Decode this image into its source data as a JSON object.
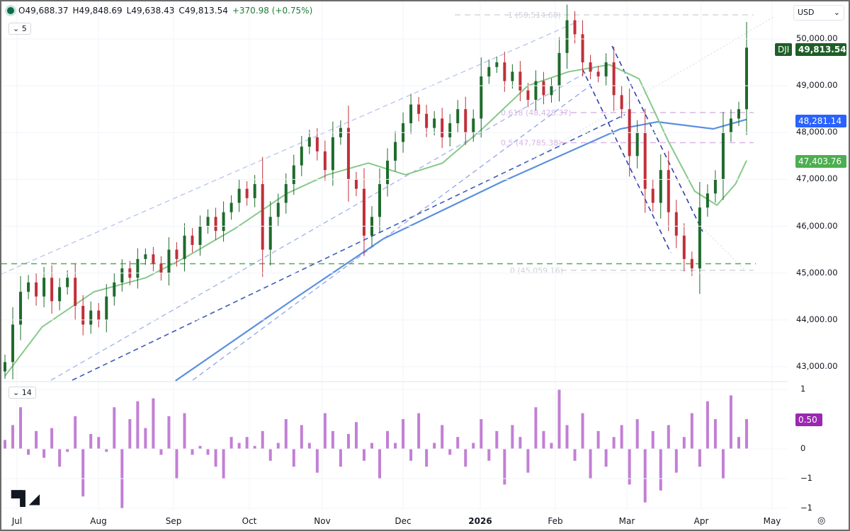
{
  "legend": {
    "open": "O49,688.37",
    "high": "H49,848.69",
    "low": "L49,638.43",
    "close": "C49,813.54",
    "change": "+370.98 (+0.75%)"
  },
  "main_pane": {
    "indicator_toggle": "5"
  },
  "osc_pane": {
    "indicator_toggle": "14"
  },
  "currency": "USD",
  "badges": {
    "symbol": "DJI",
    "last": "49,813.54",
    "ma_blue": "48,281.14",
    "ma_green": "47,403.76",
    "osc": "0.50"
  },
  "colors": {
    "up": "#1f6b2d",
    "down": "#c0303a",
    "ma_blue": "#5b8fe0",
    "ma_green": "#86c98a",
    "osc": "#c27fd6",
    "fib": "#d9b6e6",
    "support": "#4caf50"
  },
  "chart_data": [
    {
      "type": "candlestick",
      "x_range": [
        "2025-07-01",
        "2026-04-20"
      ],
      "ylim": [
        42700,
        50700
      ],
      "yticks": [
        "50,000.00",
        "49,000.00",
        "48,000.00",
        "47,000.00",
        "46,000.00",
        "45,000.00",
        "44,000.00",
        "43,000.00"
      ],
      "ytick_values": [
        50000,
        49000,
        48000,
        47000,
        46000,
        45000,
        44000,
        43000
      ],
      "closes": [
        43100,
        43900,
        44600,
        44800,
        44500,
        44900,
        44400,
        44700,
        44900,
        44300,
        43900,
        44200,
        44000,
        44500,
        44800,
        45100,
        44900,
        45300,
        45400,
        45200,
        45000,
        45500,
        45300,
        45800,
        45600,
        46000,
        46200,
        45900,
        46300,
        46500,
        46800,
        46600,
        46900,
        45500,
        46200,
        46500,
        46900,
        47300,
        47700,
        47900,
        47600,
        47200,
        47900,
        48100,
        47000,
        46800,
        45800,
        46200,
        46900,
        47400,
        47800,
        48200,
        48600,
        48400,
        48100,
        48300,
        47900,
        48200,
        48500,
        48000,
        48300,
        49200,
        49400,
        49500,
        49100,
        49300,
        48900,
        48700,
        49100,
        48800,
        49000,
        49700,
        50400,
        50100,
        49500,
        49300,
        49200,
        49500,
        48800,
        48500,
        47500,
        48000,
        46800,
        46500,
        47200,
        46300,
        45800,
        45300,
        45100,
        46400,
        46700,
        47000,
        48000,
        48300,
        48500,
        49813.54
      ],
      "ma_blue": [
        [
          0.23,
          42700
        ],
        [
          0.39,
          44450
        ],
        [
          0.51,
          45730
        ],
        [
          0.67,
          46950
        ],
        [
          0.83,
          48080
        ],
        [
          0.88,
          48230
        ],
        [
          0.955,
          48080
        ],
        [
          1,
          48281.14
        ]
      ],
      "ma_green": [
        [
          0,
          42800
        ],
        [
          0.05,
          43850
        ],
        [
          0.12,
          44600
        ],
        [
          0.19,
          44900
        ],
        [
          0.245,
          45350
        ],
        [
          0.31,
          45950
        ],
        [
          0.38,
          46700
        ],
        [
          0.435,
          47100
        ],
        [
          0.49,
          47350
        ],
        [
          0.54,
          47100
        ],
        [
          0.59,
          47350
        ],
        [
          0.645,
          48100
        ],
        [
          0.705,
          49000
        ],
        [
          0.76,
          49300
        ],
        [
          0.815,
          49450
        ],
        [
          0.855,
          49150
        ],
        [
          0.895,
          47800
        ],
        [
          0.93,
          46750
        ],
        [
          0.96,
          46450
        ],
        [
          0.985,
          46900
        ],
        [
          1,
          47403.76
        ]
      ],
      "fib_levels": [
        {
          "label": "1 (50,514.60)",
          "value": 50514.6
        },
        {
          "label": "0.618 (48,428.37)",
          "value": 48428.37
        },
        {
          "label": "0.5 (47,785.38)",
          "value": 47785.38
        },
        {
          "label": "0 (45,059.16)",
          "value": 45059.16
        }
      ],
      "support_level": 45200,
      "xticks": [
        "Jul",
        "Aug",
        "Sep",
        "Oct",
        "Nov",
        "Dec",
        "2026",
        "Feb",
        "Mar",
        "Apr",
        "May"
      ]
    },
    {
      "type": "bar",
      "ylim": [
        -1,
        1
      ],
      "yticks": [
        "1",
        "0",
        "−1",
        "−1"
      ],
      "last": 0.5,
      "values": [
        0.15,
        0.4,
        0.7,
        -0.1,
        0.3,
        -0.15,
        0.35,
        -0.3,
        -0.05,
        0.55,
        -0.8,
        0.25,
        0.2,
        -0.05,
        0.7,
        -1,
        0.5,
        0.8,
        0.35,
        0.85,
        -0.1,
        0.55,
        -0.5,
        0.6,
        -0.1,
        0.05,
        -0.1,
        -0.3,
        -0.5,
        0.2,
        0.1,
        0.2,
        0.05,
        0.3,
        -0.2,
        0.1,
        0.5,
        -0.3,
        0.4,
        0.1,
        -0.4,
        0.6,
        0.3,
        -0.3,
        0.25,
        0.45,
        -0.2,
        0.1,
        -0.5,
        0.3,
        0.1,
        0.5,
        -0.2,
        0.6,
        -0.3,
        0.1,
        0.4,
        -0.1,
        0.2,
        -0.3,
        0.1,
        0.5,
        -0.2,
        0.3,
        -0.6,
        0.4,
        0.2,
        -0.4,
        0.7,
        0.3,
        0.1,
        1,
        0.4,
        -0.2,
        0.6,
        -0.5,
        0.3,
        -0.3,
        0.2,
        0.4,
        -0.6,
        0.5,
        -0.9,
        0.3,
        -0.7,
        0.4,
        -0.4,
        0.2,
        0.6,
        -0.3,
        0.8,
        0.5,
        -0.5,
        0.9,
        0.2,
        0.5
      ]
    }
  ]
}
